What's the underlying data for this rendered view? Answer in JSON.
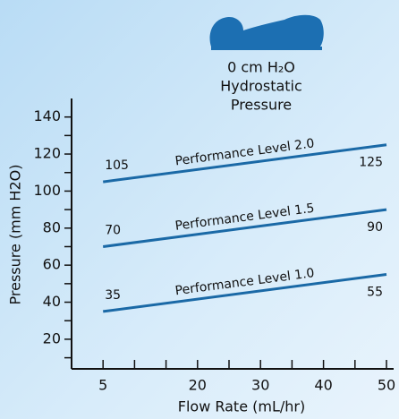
{
  "header": {
    "lines": [
      "0 cm H₂O",
      "Hydrostatic",
      "Pressure"
    ]
  },
  "chart_data": {
    "type": "line",
    "x_label": "Flow Rate (mL/hr)",
    "y_label": "Pressure (mm H2O)",
    "x": [
      5,
      50
    ],
    "series": [
      {
        "name": "Performance Level 2.0",
        "color": "#1a69a6",
        "values": [
          105,
          125
        ]
      },
      {
        "name": "Performance Level 1.5",
        "color": "#1a69a6",
        "values": [
          70,
          90
        ]
      },
      {
        "name": "Performance Level 1.0",
        "color": "#1a69a6",
        "values": [
          35,
          55
        ]
      }
    ],
    "xlim": [
      0,
      50
    ],
    "xticks": [
      5,
      20,
      30,
      40,
      50
    ],
    "xminor_ticks": [
      10,
      15,
      25,
      35,
      45
    ],
    "ylim": [
      4,
      150
    ],
    "yticks": [
      20,
      40,
      60,
      80,
      100,
      120,
      140
    ],
    "yminor_ticks": [
      10,
      30,
      50,
      70,
      90,
      110,
      130
    ]
  }
}
